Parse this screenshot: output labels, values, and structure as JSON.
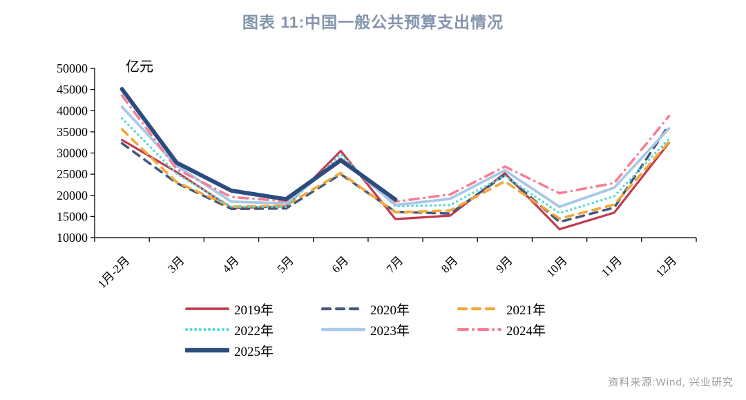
{
  "title": "图表 11:中国一般公共预算支出情况",
  "source": "资料来源:Wind, 兴业研究",
  "chart_data": {
    "type": "line",
    "title": "图表 11:中国一般公共预算支出情况",
    "unit_label": "亿元",
    "categories": [
      "1月-2月",
      "3月",
      "4月",
      "5月",
      "6月",
      "7月",
      "8月",
      "9月",
      "10月",
      "11月",
      "12月"
    ],
    "ylim": [
      10000,
      50000
    ],
    "ytick_step": 5000,
    "yticks": [
      "10000",
      "15000",
      "20000",
      "25000",
      "30000",
      "35000",
      "40000",
      "45000",
      "50000"
    ],
    "grid": false,
    "legend_position": "bottom",
    "legend_rows": [
      [
        0,
        1,
        2
      ],
      [
        3,
        4,
        5
      ],
      [
        6
      ]
    ],
    "series": [
      {
        "name": "2019年",
        "color": "#c13a4e",
        "style": "solid",
        "width": 3.2,
        "values": [
          33100,
          25500,
          17000,
          17400,
          30500,
          14400,
          15200,
          25200,
          12000,
          15900,
          32400
        ]
      },
      {
        "name": "2020年",
        "color": "#45597b",
        "style": "dashed",
        "width": 3.6,
        "values": [
          32300,
          22900,
          16800,
          16900,
          25000,
          16100,
          15700,
          24800,
          13700,
          17100,
          36600
        ]
      },
      {
        "name": "2021年",
        "color": "#f3a638",
        "style": "dashed",
        "width": 3.6,
        "values": [
          35600,
          23100,
          17300,
          17600,
          25300,
          16000,
          16400,
          23300,
          14500,
          17800,
          32600
        ]
      },
      {
        "name": "2022年",
        "color": "#4fdcd2",
        "style": "dotted",
        "width": 3.4,
        "values": [
          38200,
          25100,
          17300,
          17300,
          29700,
          17400,
          17700,
          24600,
          15800,
          19800,
          33300
        ]
      },
      {
        "name": "2023年",
        "color": "#a7c8e8",
        "style": "solid",
        "width": 3.8,
        "values": [
          40900,
          27000,
          18500,
          18100,
          28700,
          17700,
          19200,
          25900,
          17300,
          21800,
          35800
        ]
      },
      {
        "name": "2024年",
        "color": "#f87d93",
        "style": "dashdot",
        "width": 3.6,
        "values": [
          43600,
          26200,
          19600,
          18600,
          28800,
          18500,
          20200,
          26800,
          20500,
          22900,
          38700
        ]
      },
      {
        "name": "2025年",
        "color": "#2c4c7e",
        "style": "solid",
        "width": 6.0,
        "values": [
          45100,
          27700,
          21100,
          19100,
          28300,
          19000,
          null,
          null,
          null,
          null,
          null
        ]
      }
    ]
  }
}
